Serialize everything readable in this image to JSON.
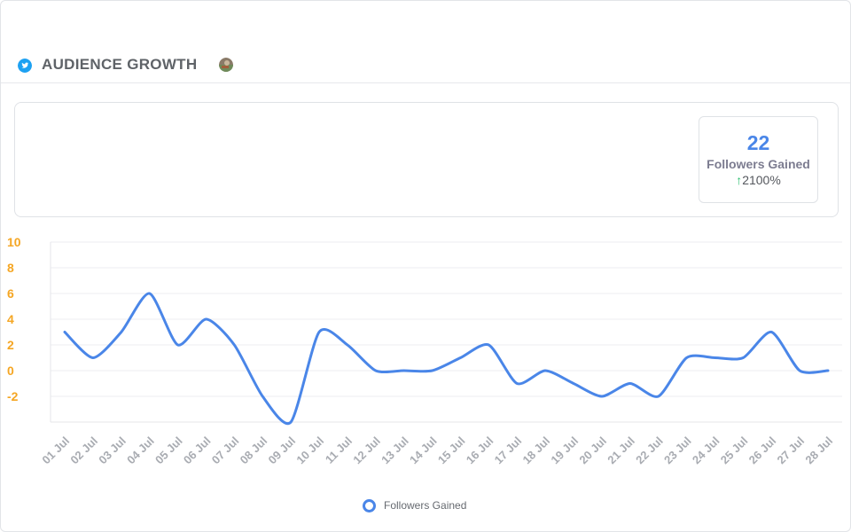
{
  "header": {
    "title": "AUDIENCE GROWTH",
    "network_icon": "twitter-icon",
    "avatar_icon": "profile-avatar"
  },
  "kpi": {
    "value": "22",
    "label": "Followers Gained",
    "change_arrow": "↑",
    "change": "2100%"
  },
  "colors": {
    "series": "#4a86e8",
    "y_tick": "#f5a623",
    "up_arrow": "#2fbf71",
    "twitter": "#1da1f2"
  },
  "chart_data": {
    "type": "line",
    "title": "",
    "xlabel": "",
    "ylabel": "",
    "ylim": [
      -4,
      10
    ],
    "y_ticks": [
      "10",
      "8",
      "6",
      "4",
      "2",
      "0",
      "-2"
    ],
    "grid": true,
    "legend_position": "bottom",
    "categories": [
      "01 Jul",
      "02 Jul",
      "03 Jul",
      "04 Jul",
      "05 Jul",
      "06 Jul",
      "07 Jul",
      "08 Jul",
      "09 Jul",
      "10 Jul",
      "11 Jul",
      "12 Jul",
      "13 Jul",
      "14 Jul",
      "15 Jul",
      "16 Jul",
      "17 Jul",
      "18 Jul",
      "19 Jul",
      "20 Jul",
      "21 Jul",
      "22 Jul",
      "23 Jul",
      "24 Jul",
      "25 Jul",
      "26 Jul",
      "27 Jul",
      "28 Jul"
    ],
    "series": [
      {
        "name": "Followers Gained",
        "values": [
          3,
          1,
          3,
          6,
          2,
          4,
          2,
          -2,
          -4,
          3,
          2,
          0,
          0,
          0,
          1,
          2,
          -1,
          0,
          -1,
          -2,
          -1,
          -2,
          1,
          1,
          1,
          3,
          0,
          0
        ]
      }
    ]
  }
}
